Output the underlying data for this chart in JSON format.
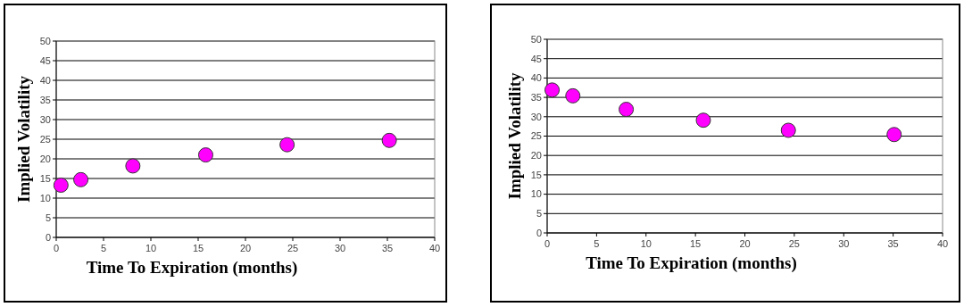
{
  "chart_data": [
    {
      "type": "scatter",
      "xlabel": "Time To Expiration (months)",
      "ylabel": "Implied Volatility",
      "x": [
        0.5,
        2.6,
        8.1,
        15.8,
        24.4,
        35.2
      ],
      "series": [
        {
          "color": "#ff00ff",
          "values": [
            13.3,
            14.7,
            18.2,
            21.0,
            23.6,
            24.7
          ]
        }
      ],
      "xlim": [
        0,
        40
      ],
      "xticks": [
        0,
        5,
        10,
        15,
        20,
        25,
        30,
        35,
        40
      ],
      "ylim": [
        0,
        50
      ],
      "yticks": [
        0,
        5,
        10,
        15,
        20,
        25,
        30,
        35,
        40,
        45,
        50
      ],
      "grid": "y",
      "marker": "circle"
    },
    {
      "type": "scatter",
      "xlabel": "Time To Expiration (months)",
      "ylabel": "Implied Volatility",
      "x": [
        0.5,
        2.6,
        8.0,
        15.8,
        24.4,
        35.1
      ],
      "series": [
        {
          "color": "#ff00ff",
          "values": [
            36.9,
            35.4,
            31.9,
            29.1,
            26.5,
            25.4
          ]
        }
      ],
      "xlim": [
        0,
        40
      ],
      "xticks": [
        0,
        5,
        10,
        15,
        20,
        25,
        30,
        35,
        40
      ],
      "ylim": [
        0,
        50
      ],
      "yticks": [
        0,
        5,
        10,
        15,
        20,
        25,
        30,
        35,
        40,
        45,
        50
      ],
      "grid": "y",
      "marker": "circle"
    }
  ]
}
